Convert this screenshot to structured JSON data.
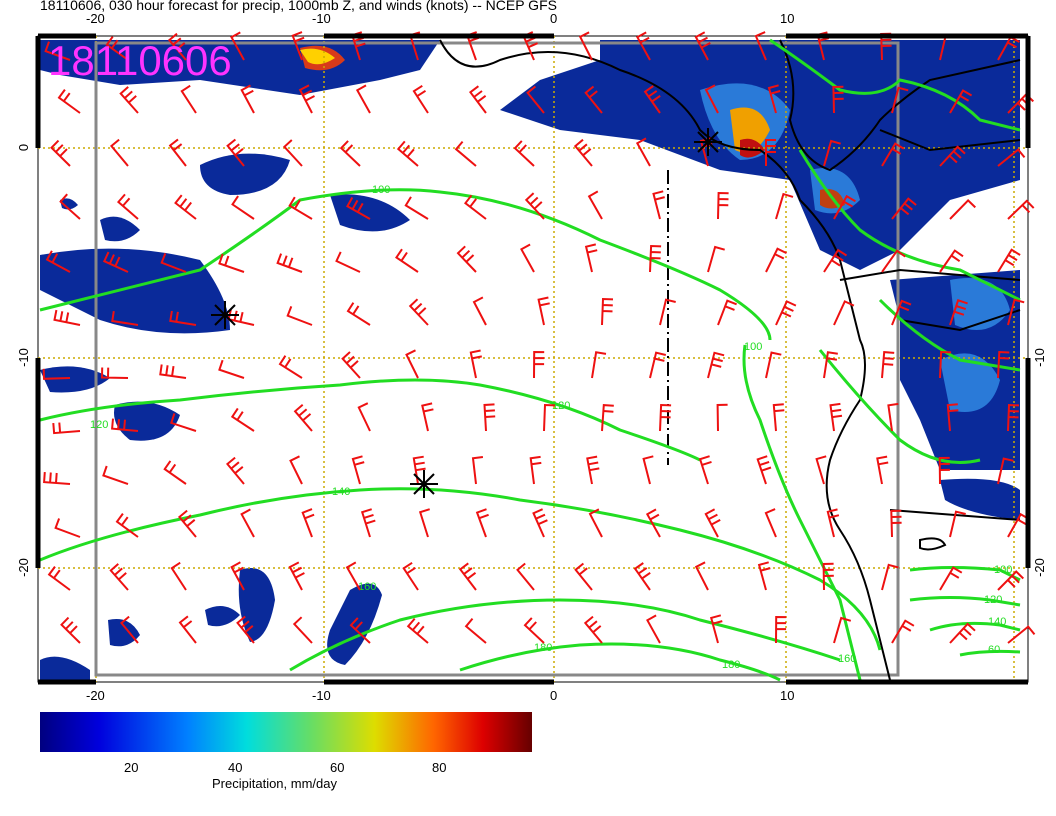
{
  "title": "18110606, 030 hour forecast for precip, 1000mb Z, and winds (knots) -- NCEP GFS",
  "stamp": "18110606",
  "colors": {
    "contour": "#22dd22",
    "barb": "#ee1111",
    "coast": "#000000",
    "grid": "#ccaa00",
    "stamp": "#ff33ff"
  },
  "axes": {
    "top_lon_labels": [
      "-20",
      "-10",
      "0",
      "10"
    ],
    "bottom_lon_labels": [
      "-20",
      "-10",
      "0",
      "10"
    ],
    "left_lat_labels": [
      "0",
      "-10",
      "-20"
    ],
    "right_lat_labels": [
      "-10",
      "-20"
    ]
  },
  "contours": {
    "labels": [
      "100",
      "120",
      "140",
      "160",
      "180",
      "100",
      "120",
      "100",
      "120",
      "140",
      "160",
      "180",
      "60"
    ]
  },
  "colorbar": {
    "ticks": [
      "20",
      "40",
      "60",
      "80"
    ],
    "label": "Precipitation, mm/day"
  }
}
